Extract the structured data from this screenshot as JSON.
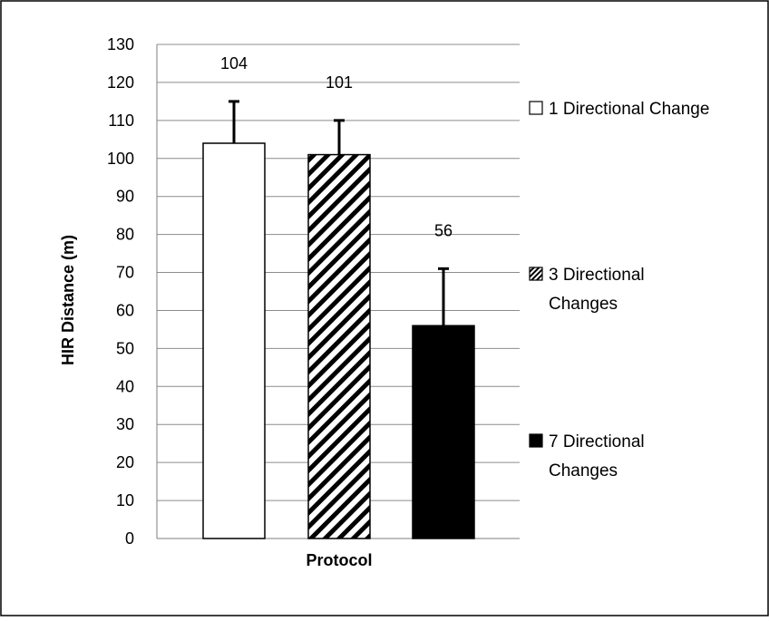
{
  "chart_data": {
    "type": "bar",
    "categories": [
      "1 Directional Change",
      "3 Directional Changes",
      "7 Directional Changes"
    ],
    "series": [
      {
        "name": "1 Directional Change",
        "value": 104,
        "error": 11,
        "data_label": "104",
        "fill": "#ffffff",
        "pattern": "none",
        "legend_lines": [
          "1 Directional Change"
        ]
      },
      {
        "name": "3 Directional Changes",
        "value": 101,
        "error": 9,
        "data_label": "101",
        "fill": "#ffffff",
        "pattern": "diagonal-stripes",
        "legend_lines": [
          "3 Directional",
          "Changes"
        ]
      },
      {
        "name": "7 Directional Changes",
        "value": 56,
        "error": 15,
        "data_label": "56",
        "fill": "#000000",
        "pattern": "none",
        "legend_lines": [
          "7 Directional",
          "Changes"
        ]
      }
    ],
    "xlabel": "Protocol",
    "ylabel": "HIR Distance (m)",
    "ylim": [
      0,
      130
    ],
    "ytick_step": 10,
    "grid": true,
    "legend_position": "right",
    "colors": {
      "bar_outline": "#000000",
      "gridline": "#8c8c8c",
      "frame": "#000000"
    }
  }
}
